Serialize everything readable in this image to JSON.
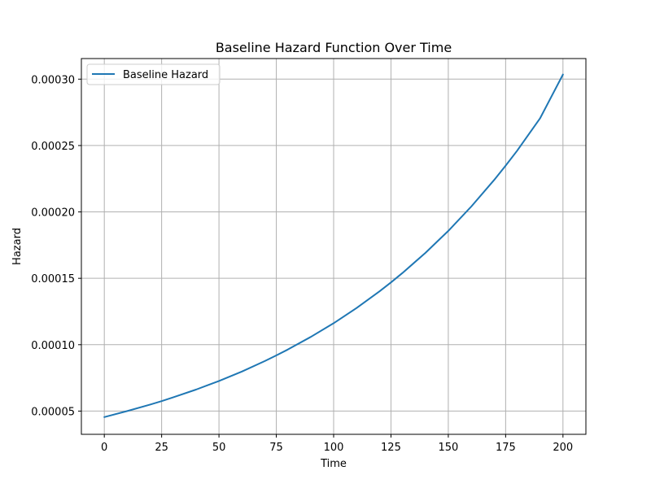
{
  "chart_data": {
    "type": "line",
    "title": "Baseline Hazard Function Over Time",
    "xlabel": "Time",
    "ylabel": "Hazard",
    "xlim": [
      -10,
      210
    ],
    "ylim": [
      3.25e-05,
      0.0003155
    ],
    "x_ticks": [
      0,
      25,
      50,
      75,
      100,
      125,
      150,
      175,
      200
    ],
    "x_tick_labels": [
      "0",
      "25",
      "50",
      "75",
      "100",
      "125",
      "150",
      "175",
      "200"
    ],
    "y_ticks": [
      5e-05,
      0.0001,
      0.00015,
      0.0002,
      0.00025,
      0.0003
    ],
    "y_tick_labels": [
      "0.00005",
      "0.00010",
      "0.00015",
      "0.00020",
      "0.00025",
      "0.00030"
    ],
    "grid": true,
    "legend_position": "top-left",
    "series": [
      {
        "name": "Baseline Hazard",
        "color": "#1f77b4",
        "x": [
          0,
          10,
          20,
          25,
          30,
          40,
          50,
          60,
          70,
          75,
          80,
          90,
          100,
          110,
          120,
          125,
          130,
          140,
          150,
          160,
          170,
          175,
          180,
          190,
          200
        ],
        "y": [
          4.55e-05,
          5e-05,
          5.49e-05,
          5.75e-05,
          6.03e-05,
          6.62e-05,
          7.27e-05,
          7.98e-05,
          8.77e-05,
          9.19e-05,
          9.63e-05,
          0.0001058,
          0.0001162,
          0.0001276,
          0.0001402,
          0.0001469,
          0.000154,
          0.0001691,
          0.0001857,
          0.000204,
          0.0002241,
          0.0002349,
          0.0002461,
          0.0002704,
          0.0003035
        ]
      }
    ]
  }
}
